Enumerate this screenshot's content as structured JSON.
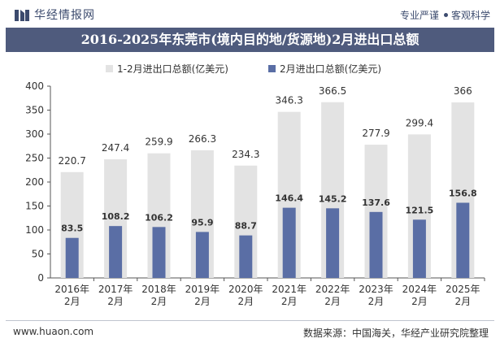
{
  "header": {
    "brand": "华经情报网",
    "slogan_left": "专业严谨",
    "slogan_right": "客观科学"
  },
  "chart_data": {
    "type": "bar",
    "title": "2016-2025年东莞市(境内目的地/货源地)2月进出口总额",
    "categories": [
      "2016年\n2月",
      "2017年\n2月",
      "2018年\n2月",
      "2019年\n2月",
      "2020年\n2月",
      "2021年\n2月",
      "2022年\n2月",
      "2023年\n2月",
      "2024年\n2月",
      "2025年\n2月"
    ],
    "series": [
      {
        "name": "1-2月进出口总额(亿美元)",
        "values": [
          220.7,
          247.4,
          259.9,
          266.3,
          234.3,
          346.3,
          366.5,
          277.9,
          299.4,
          366
        ],
        "labels": [
          "220.7",
          "247.4",
          "259.9",
          "266.3",
          "234.3",
          "346.3",
          "366.5",
          "277.9",
          "299.4",
          "366"
        ],
        "color": "#e3e3e3"
      },
      {
        "name": "2月进出口总额(亿美元)",
        "values": [
          83.5,
          108.2,
          106.2,
          95.9,
          88.7,
          146.4,
          145.2,
          137.6,
          121.5,
          156.8
        ],
        "labels": [
          "83.5",
          "108.2",
          "106.2",
          "95.9",
          "88.7",
          "146.4",
          "145.2",
          "137.6",
          "121.5",
          "156.8"
        ],
        "color": "#5a6ea5"
      }
    ],
    "ylim": [
      0,
      400
    ],
    "yticks": [
      "0",
      "50",
      "100",
      "150",
      "200",
      "250",
      "300",
      "350",
      "400"
    ],
    "grid": false,
    "legend": "top-center"
  },
  "footer": {
    "website": "www.huaon.com",
    "source": "数据来源：中国海关，华经产业研究院整理"
  }
}
